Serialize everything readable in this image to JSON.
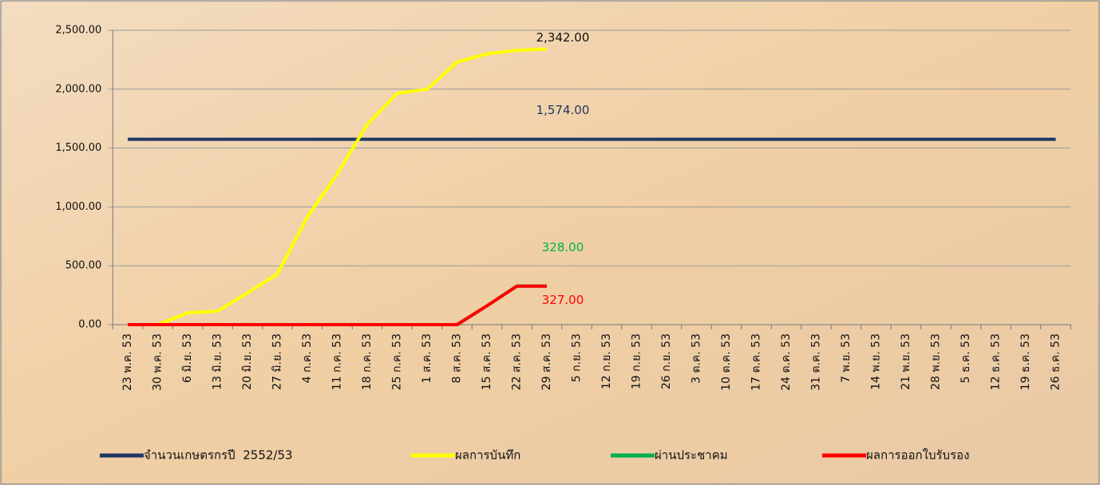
{
  "chart_data": {
    "type": "line",
    "categories": [
      "23 พ.ค. 53",
      "30 พ.ค. 53",
      "6 มิ.ย. 53",
      "13 มิ.ย. 53",
      "20 มิ.ย. 53",
      "27 มิ.ย. 53",
      "4 ก.ค. 53",
      "11 ก.ค. 53",
      "18 ก.ค. 53",
      "25 ก.ค. 53",
      "1 ส.ค. 53",
      "8 ส.ค. 53",
      "15 ส.ค. 53",
      "22 ส.ค. 53",
      "29 ส.ค. 53",
      "5 ก.ย. 53",
      "12 ก.ย. 53",
      "19 ก.ย. 53",
      "26 ก.ย. 53",
      "3 ต.ค. 53",
      "10 ต.ค. 53",
      "17 ต.ค. 53",
      "24 ต.ค. 53",
      "31 ต.ค. 53",
      "7 พ.ย. 53",
      "14 พ.ย. 53",
      "21 พ.ย. 53",
      "28 พ.ย. 53",
      "5 ธ.ค. 53",
      "12 ธ.ค. 53",
      "19 ธ.ค. 53",
      "26 ธ.ค. 53"
    ],
    "series": [
      {
        "name": "จำนวนเกษตรกรปี  2552/53",
        "color": "#1f3864",
        "values": [
          1574,
          1574,
          1574,
          1574,
          1574,
          1574,
          1574,
          1574,
          1574,
          1574,
          1574,
          1574,
          1574,
          1574,
          1574,
          1574,
          1574,
          1574,
          1574,
          1574,
          1574,
          1574,
          1574,
          1574,
          1574,
          1574,
          1574,
          1574,
          1574,
          1574,
          1574,
          1574
        ],
        "value_labels": [
          null,
          null,
          null,
          null,
          null,
          null,
          null,
          null,
          null,
          null,
          null,
          null,
          null,
          null,
          "1,574.00",
          null,
          null,
          null,
          null,
          null,
          null,
          null,
          null,
          null,
          null,
          null,
          null,
          null,
          null,
          null,
          null,
          null
        ],
        "label_color": "#1f3864"
      },
      {
        "name": "ผลการบันทึก",
        "color": "#ffff00",
        "values": [
          0,
          0,
          100,
          115,
          270,
          430,
          915,
          1280,
          1700,
          1965,
          2000,
          2230,
          2300,
          2330,
          2342,
          null,
          null,
          null,
          null,
          null,
          null,
          null,
          null,
          null,
          null,
          null,
          null,
          null,
          null,
          null,
          null,
          null
        ],
        "value_labels": [
          null,
          null,
          null,
          null,
          null,
          null,
          null,
          null,
          null,
          null,
          null,
          null,
          null,
          null,
          "2,342.00",
          null,
          null,
          null,
          null,
          null,
          null,
          null,
          null,
          null,
          null,
          null,
          null,
          null,
          null,
          null,
          null,
          null
        ],
        "label_color": "#111111"
      },
      {
        "name": "ผ่านประชาคม",
        "color": "#00b050",
        "values": [
          0,
          0,
          0,
          0,
          0,
          0,
          0,
          0,
          0,
          0,
          0,
          0,
          160,
          328,
          328,
          null,
          null,
          null,
          null,
          null,
          null,
          null,
          null,
          null,
          null,
          null,
          null,
          null,
          null,
          null,
          null,
          null
        ],
        "value_labels": [
          null,
          null,
          null,
          null,
          null,
          null,
          null,
          null,
          null,
          null,
          null,
          null,
          null,
          null,
          "328.00",
          null,
          null,
          null,
          null,
          null,
          null,
          null,
          null,
          null,
          null,
          null,
          null,
          null,
          null,
          null,
          null,
          null
        ],
        "label_color": "#00b050"
      },
      {
        "name": "ผลการออกใบรับรอง",
        "color": "#ff0000",
        "values": [
          0,
          0,
          0,
          0,
          0,
          0,
          0,
          0,
          0,
          0,
          0,
          0,
          160,
          327,
          327,
          null,
          null,
          null,
          null,
          null,
          null,
          null,
          null,
          null,
          null,
          null,
          null,
          null,
          null,
          null,
          null,
          null
        ],
        "value_labels": [
          null,
          null,
          null,
          null,
          null,
          null,
          null,
          null,
          null,
          null,
          null,
          null,
          null,
          null,
          "327.00",
          null,
          null,
          null,
          null,
          null,
          null,
          null,
          null,
          null,
          null,
          null,
          null,
          null,
          null,
          null,
          null,
          null
        ],
        "label_color": "#ff0000"
      }
    ],
    "ylim": [
      0,
      2500
    ],
    "yticks": [
      {
        "value": 0,
        "label": "0.00"
      },
      {
        "value": 500,
        "label": "500.00"
      },
      {
        "value": 1000,
        "label": "1,000.00"
      },
      {
        "value": 1500,
        "label": "1,500.00"
      },
      {
        "value": 2000,
        "label": "2,000.00"
      },
      {
        "value": 2500,
        "label": "2,500.00"
      }
    ],
    "grid": true,
    "legend": "bottom"
  }
}
